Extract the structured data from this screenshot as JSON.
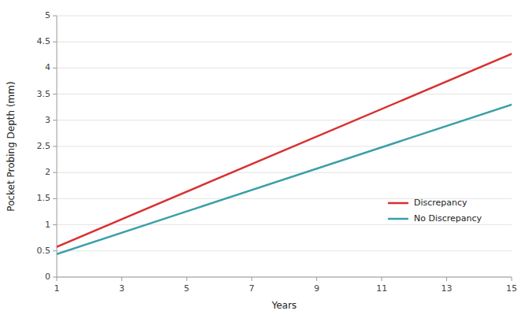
{
  "chart_data": {
    "type": "line",
    "xlabel": "Years",
    "ylabel": "Pocket Probing Depth (mm)",
    "x": [
      1,
      15
    ],
    "series": [
      {
        "name": "Discrepancy",
        "color": "#D93030",
        "values": [
          0.58,
          4.27
        ]
      },
      {
        "name": "No Discrepancy",
        "color": "#3A9FAA",
        "values": [
          0.44,
          3.3
        ]
      }
    ],
    "xlim": [
      1,
      15
    ],
    "ylim": [
      0,
      5
    ],
    "xticks": [
      1,
      3,
      5,
      7,
      9,
      11,
      13,
      15
    ],
    "yticks": [
      0,
      0.5,
      1,
      1.5,
      2,
      2.5,
      3,
      3.5,
      4,
      4.5,
      5
    ],
    "grid": true,
    "legend": "lower right"
  }
}
